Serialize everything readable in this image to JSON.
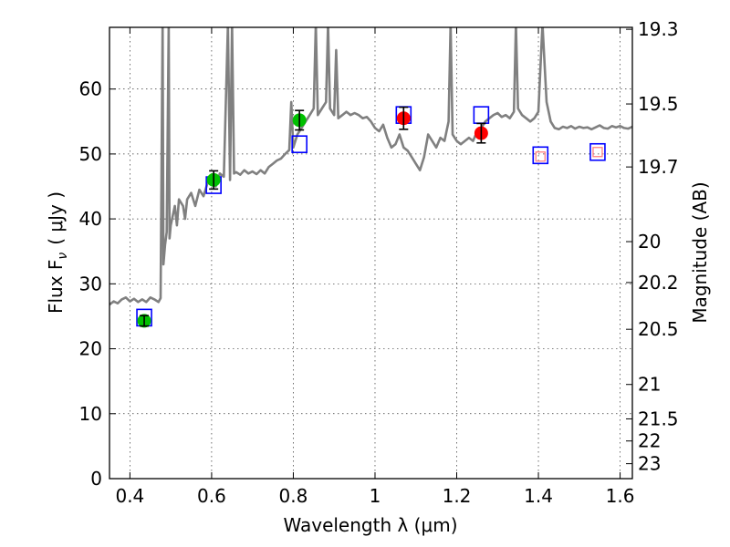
{
  "chart_data": {
    "type": "scatter",
    "xlabel": "Wavelength  λ (μm)",
    "ylabel": "Flux  F",
    "ylabel_sub": "ν",
    "ylabel_unit": "( μJy )",
    "y2label": "Magnitude (AB)",
    "xlim": [
      0.35,
      1.63
    ],
    "ylim": [
      0,
      69.5
    ],
    "grid": true,
    "x_ticks": [
      0.4,
      0.6,
      0.8,
      1.0,
      1.2,
      1.4,
      1.6
    ],
    "x_tick_labels": [
      "0.4",
      "0.6",
      "0.8",
      "1",
      "1.2",
      "1.4",
      "1.6"
    ],
    "y_ticks": [
      0,
      10,
      20,
      30,
      40,
      50,
      60
    ],
    "y_tick_labels": [
      "0",
      "10",
      "20",
      "30",
      "40",
      "50",
      "60"
    ],
    "y2_ticks": [
      {
        "flux": 69.2,
        "label": "19.3"
      },
      {
        "flux": 57.7,
        "label": "19.5"
      },
      {
        "flux": 48.0,
        "label": "19.7"
      },
      {
        "flux": 36.5,
        "label": "20"
      },
      {
        "flux": 30.2,
        "label": "20.2"
      },
      {
        "flux": 23.0,
        "label": "20.5"
      },
      {
        "flux": 14.5,
        "label": "21"
      },
      {
        "flux": 9.2,
        "label": "21.5"
      },
      {
        "flux": 5.8,
        "label": "22"
      },
      {
        "flux": 2.3,
        "label": "23"
      }
    ],
    "spectrum": {
      "color": "#808080",
      "points": [
        [
          0.35,
          26.8
        ],
        [
          0.36,
          27.3
        ],
        [
          0.37,
          27.0
        ],
        [
          0.38,
          27.6
        ],
        [
          0.39,
          27.9
        ],
        [
          0.4,
          27.3
        ],
        [
          0.41,
          27.7
        ],
        [
          0.42,
          27.2
        ],
        [
          0.43,
          27.6
        ],
        [
          0.44,
          27.2
        ],
        [
          0.45,
          27.9
        ],
        [
          0.46,
          27.6
        ],
        [
          0.47,
          27.2
        ],
        [
          0.475,
          27.8
        ],
        [
          0.48,
          70
        ],
        [
          0.482,
          33
        ],
        [
          0.486,
          36
        ],
        [
          0.49,
          38
        ],
        [
          0.495,
          70
        ],
        [
          0.497,
          37
        ],
        [
          0.5,
          39
        ],
        [
          0.51,
          42
        ],
        [
          0.515,
          39
        ],
        [
          0.52,
          43
        ],
        [
          0.53,
          42
        ],
        [
          0.535,
          40
        ],
        [
          0.54,
          43
        ],
        [
          0.55,
          44
        ],
        [
          0.56,
          42
        ],
        [
          0.57,
          44.5
        ],
        [
          0.58,
          43.5
        ],
        [
          0.59,
          45.5
        ],
        [
          0.6,
          46.5
        ],
        [
          0.61,
          45
        ],
        [
          0.62,
          47
        ],
        [
          0.63,
          46.5
        ],
        [
          0.64,
          70
        ],
        [
          0.645,
          46
        ],
        [
          0.65,
          70
        ],
        [
          0.655,
          47
        ],
        [
          0.66,
          47.2
        ],
        [
          0.67,
          46.8
        ],
        [
          0.68,
          47.5
        ],
        [
          0.69,
          47
        ],
        [
          0.7,
          47.3
        ],
        [
          0.71,
          46.9
        ],
        [
          0.72,
          47.5
        ],
        [
          0.73,
          47
        ],
        [
          0.74,
          48
        ],
        [
          0.75,
          48.5
        ],
        [
          0.76,
          49
        ],
        [
          0.77,
          49.3
        ],
        [
          0.78,
          50
        ],
        [
          0.79,
          50.6
        ],
        [
          0.795,
          58
        ],
        [
          0.8,
          51
        ],
        [
          0.81,
          53
        ],
        [
          0.82,
          54
        ],
        [
          0.83,
          55
        ],
        [
          0.84,
          56
        ],
        [
          0.85,
          57
        ],
        [
          0.855,
          70
        ],
        [
          0.86,
          56
        ],
        [
          0.87,
          57
        ],
        [
          0.88,
          58
        ],
        [
          0.885,
          70
        ],
        [
          0.89,
          57
        ],
        [
          0.9,
          56
        ],
        [
          0.905,
          66
        ],
        [
          0.91,
          55.5
        ],
        [
          0.92,
          56
        ],
        [
          0.93,
          56.5
        ],
        [
          0.94,
          56
        ],
        [
          0.95,
          56.3
        ],
        [
          0.96,
          56
        ],
        [
          0.97,
          55.5
        ],
        [
          0.98,
          55.7
        ],
        [
          0.99,
          55
        ],
        [
          1.0,
          54
        ],
        [
          1.01,
          53.5
        ],
        [
          1.02,
          54.5
        ],
        [
          1.03,
          52.5
        ],
        [
          1.04,
          51
        ],
        [
          1.05,
          51.5
        ],
        [
          1.06,
          53
        ],
        [
          1.07,
          51
        ],
        [
          1.08,
          50.5
        ],
        [
          1.09,
          49.5
        ],
        [
          1.1,
          48.5
        ],
        [
          1.11,
          47.5
        ],
        [
          1.12,
          49.5
        ],
        [
          1.13,
          53
        ],
        [
          1.14,
          52
        ],
        [
          1.15,
          51
        ],
        [
          1.16,
          52.5
        ],
        [
          1.17,
          52
        ],
        [
          1.18,
          55
        ],
        [
          1.185,
          70
        ],
        [
          1.19,
          53
        ],
        [
          1.2,
          52
        ],
        [
          1.21,
          51.5
        ],
        [
          1.22,
          52
        ],
        [
          1.23,
          52.5
        ],
        [
          1.24,
          52
        ],
        [
          1.25,
          53.5
        ],
        [
          1.26,
          54
        ],
        [
          1.27,
          55
        ],
        [
          1.28,
          55.5
        ],
        [
          1.29,
          56
        ],
        [
          1.3,
          56.3
        ],
        [
          1.31,
          55.7
        ],
        [
          1.32,
          56
        ],
        [
          1.33,
          55.5
        ],
        [
          1.34,
          56.5
        ],
        [
          1.345,
          70
        ],
        [
          1.35,
          57
        ],
        [
          1.36,
          56
        ],
        [
          1.37,
          55.5
        ],
        [
          1.38,
          55
        ],
        [
          1.39,
          55.5
        ],
        [
          1.4,
          56.5
        ],
        [
          1.41,
          70
        ],
        [
          1.42,
          58
        ],
        [
          1.43,
          55
        ],
        [
          1.44,
          54
        ],
        [
          1.45,
          53.8
        ],
        [
          1.46,
          54.2
        ],
        [
          1.47,
          54
        ],
        [
          1.48,
          54.3
        ],
        [
          1.49,
          53.9
        ],
        [
          1.5,
          54.2
        ],
        [
          1.51,
          54
        ],
        [
          1.52,
          54.1
        ],
        [
          1.53,
          53.8
        ],
        [
          1.54,
          54.1
        ],
        [
          1.55,
          54.4
        ],
        [
          1.56,
          54
        ],
        [
          1.57,
          53.9
        ],
        [
          1.58,
          54.3
        ],
        [
          1.59,
          54.1
        ],
        [
          1.6,
          54.3
        ],
        [
          1.61,
          54
        ],
        [
          1.62,
          53.9
        ],
        [
          1.63,
          54.2
        ]
      ]
    },
    "model_points": {
      "marker": "open-square",
      "color": "#0000ff",
      "points": [
        {
          "x": 0.435,
          "y": 24.8
        },
        {
          "x": 0.605,
          "y": 45.2
        },
        {
          "x": 0.815,
          "y": 51.5
        },
        {
          "x": 1.07,
          "y": 56.0
        },
        {
          "x": 1.26,
          "y": 56.0
        },
        {
          "x": 1.405,
          "y": 49.8
        },
        {
          "x": 1.545,
          "y": 50.3
        }
      ]
    },
    "observed_points": [
      {
        "x": 0.435,
        "y": 24.3,
        "err": 0.8,
        "color": "#00c000",
        "marker": "filled-circle"
      },
      {
        "x": 0.605,
        "y": 46.0,
        "err": 1.4,
        "color": "#00c000",
        "marker": "filled-circle"
      },
      {
        "x": 0.815,
        "y": 55.2,
        "err": 1.5,
        "color": "#00c000",
        "marker": "filled-circle"
      },
      {
        "x": 1.07,
        "y": 55.5,
        "err": 1.7,
        "color": "#ff0000",
        "marker": "filled-circle"
      },
      {
        "x": 1.26,
        "y": 53.2,
        "err": 1.5,
        "color": "#ff0000",
        "marker": "filled-circle"
      }
    ],
    "limit_points": {
      "marker": "small-open-square",
      "color": "#ff8080",
      "points": [
        {
          "x": 1.405,
          "y": 49.6
        },
        {
          "x": 1.545,
          "y": 50.3
        }
      ]
    }
  }
}
